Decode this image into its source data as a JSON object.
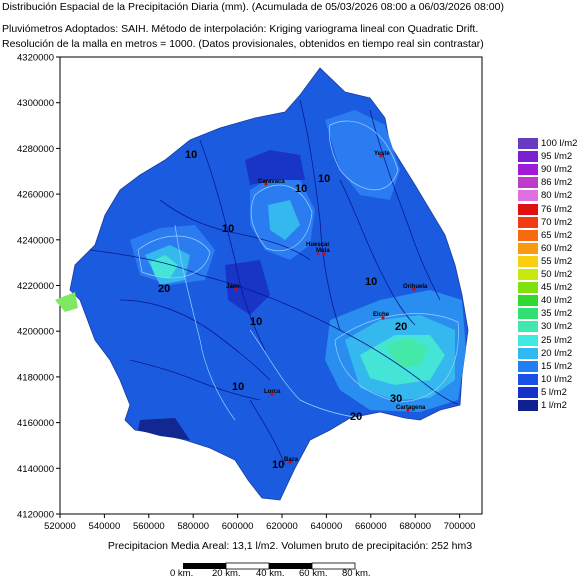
{
  "header": {
    "line1": "Distribución Espacial de la Precipitación Diaria (mm). (Acumulada de 05/03/2026 08:00 a 06/03/2026 08:00)",
    "line2": "Pluviómetros Adoptados: SAIH.  Método de interpolación: Kriging variograma lineal con Quadratic Drift.",
    "line3": "Resolución de la malla en metros = 1000. (Datos provisionales, obtenidos en tiempo real sin contrastar)"
  },
  "axes": {
    "x_ticks": [
      "520000",
      "540000",
      "560000",
      "580000",
      "600000",
      "620000",
      "640000",
      "660000",
      "680000",
      "700000"
    ],
    "y_ticks": [
      "4320000",
      "4300000",
      "4280000",
      "4260000",
      "4240000",
      "4220000",
      "4200000",
      "4180000",
      "4160000",
      "4140000",
      "4120000"
    ]
  },
  "legend": [
    {
      "label": "100 l/m2",
      "color": "#6a3bc0"
    },
    {
      "label": "95 l/m2",
      "color": "#7a1fd0"
    },
    {
      "label": "90 l/m2",
      "color": "#a01ad8"
    },
    {
      "label": "86 l/m2",
      "color": "#c03ac8"
    },
    {
      "label": "80 l/m2",
      "color": "#e070e0"
    },
    {
      "label": "76 l/m2",
      "color": "#e01010"
    },
    {
      "label": "70 l/m2",
      "color": "#f03a10"
    },
    {
      "label": "65 l/m2",
      "color": "#f86a10"
    },
    {
      "label": "60 l/m2",
      "color": "#f89a10"
    },
    {
      "label": "55 l/m2",
      "color": "#f8d010"
    },
    {
      "label": "50 l/m2",
      "color": "#c8e810"
    },
    {
      "label": "45 l/m2",
      "color": "#80e010"
    },
    {
      "label": "40 l/m2",
      "color": "#30d830"
    },
    {
      "label": "35 l/m2",
      "color": "#30e070"
    },
    {
      "label": "30 l/m2",
      "color": "#40e8b0"
    },
    {
      "label": "25 l/m2",
      "color": "#40e8e0"
    },
    {
      "label": "20 l/m2",
      "color": "#30b8f0"
    },
    {
      "label": "15 l/m2",
      "color": "#2080f0"
    },
    {
      "label": "10 l/m2",
      "color": "#1850e8"
    },
    {
      "label": "5 l/m2",
      "color": "#1830c8"
    },
    {
      "label": "1 l/m2",
      "color": "#102090"
    }
  ],
  "contour_labels": [
    "10",
    "10",
    "10",
    "10",
    "10",
    "10",
    "10",
    "10",
    "20",
    "20",
    "20",
    "30"
  ],
  "towns": [
    "Yeste",
    "Mula",
    "Caravaca",
    "Elche",
    "Orihuela",
    "Lorca",
    "Cartagena",
    "Jaen",
    "Baza",
    "Huescar"
  ],
  "footer": {
    "summary": "Precipitacion Media Areal: 13,1 l/m2. Volumen bruto de precipitación: 252 hm3"
  },
  "scale_bar": {
    "labels": [
      "0 km.",
      "20 km.",
      "40 km.",
      "60 km.",
      "80 km."
    ]
  }
}
